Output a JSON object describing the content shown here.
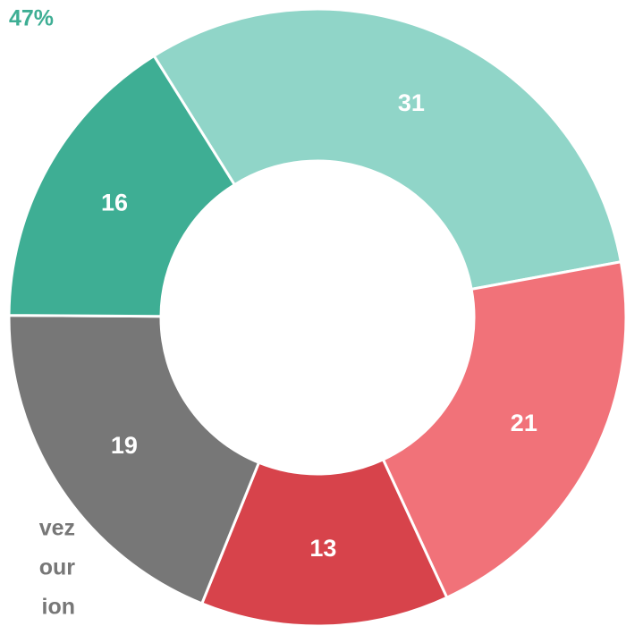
{
  "chart_data": {
    "type": "donut",
    "values": [
      31,
      21,
      13,
      19,
      16
    ],
    "colors": [
      "#90d5c8",
      "#f17279",
      "#d7434b",
      "#777777",
      "#3eae94"
    ],
    "annotations": [
      "47%",
      "vez",
      "our",
      "ion"
    ]
  }
}
